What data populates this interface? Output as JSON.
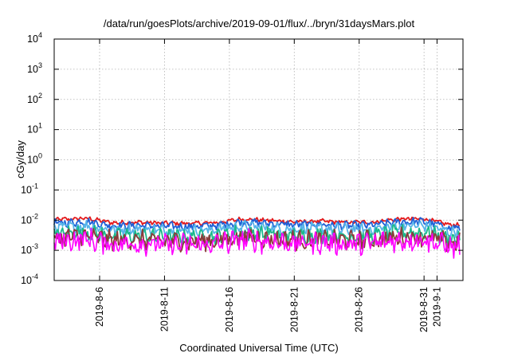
{
  "chart_data": {
    "type": "line",
    "title": "/data/run/goesPlots/archive/2019-09-01/flux/../bryn/31daysMars.plot",
    "xlabel": "Coordinated Universal Time (UTC)",
    "ylabel": "cGy/day",
    "yscale": "log",
    "ylim": [
      0.0001,
      10000
    ],
    "y_ticks": [
      {
        "base": "10",
        "exp": "-4",
        "value": 0.0001
      },
      {
        "base": "10",
        "exp": "-3",
        "value": 0.001
      },
      {
        "base": "10",
        "exp": "-2",
        "value": 0.01
      },
      {
        "base": "10",
        "exp": "-1",
        "value": 0.1
      },
      {
        "base": "10",
        "exp": "0",
        "value": 1
      },
      {
        "base": "10",
        "exp": "1",
        "value": 10
      },
      {
        "base": "10",
        "exp": "2",
        "value": 100
      },
      {
        "base": "10",
        "exp": "3",
        "value": 1000
      },
      {
        "base": "10",
        "exp": "4",
        "value": 10000
      }
    ],
    "xlim": [
      "2019-08-02T12:00",
      "2019-09-03T00:00"
    ],
    "x_ticks": [
      "2019-8-6",
      "2019-8-11",
      "2019-8-16",
      "2019-8-21",
      "2019-8-26",
      "2019-8-31",
      "2019-9-1"
    ],
    "grid": true,
    "legend": "none",
    "x": [
      "2019-08-03",
      "2019-08-05",
      "2019-08-07",
      "2019-08-09",
      "2019-08-11",
      "2019-08-13",
      "2019-08-15",
      "2019-08-17",
      "2019-08-19",
      "2019-08-21",
      "2019-08-23",
      "2019-08-25",
      "2019-08-27",
      "2019-08-29",
      "2019-08-31",
      "2019-09-02"
    ],
    "series": [
      {
        "color": "#e41a1c",
        "values": [
          0.0105,
          0.0115,
          0.0082,
          0.0085,
          0.008,
          0.0078,
          0.0082,
          0.011,
          0.0098,
          0.0088,
          0.0092,
          0.0084,
          0.0086,
          0.0108,
          0.0112,
          0.007
        ]
      },
      {
        "color": "#1f5fd6",
        "values": [
          0.008,
          0.009,
          0.0065,
          0.0067,
          0.0063,
          0.0062,
          0.0066,
          0.0088,
          0.0078,
          0.007,
          0.0073,
          0.0066,
          0.0068,
          0.0086,
          0.009,
          0.0056
        ]
      },
      {
        "color": "#56b4e9",
        "values": [
          0.0058,
          0.0065,
          0.0048,
          0.005,
          0.0046,
          0.0045,
          0.0048,
          0.0064,
          0.0057,
          0.0051,
          0.0053,
          0.0048,
          0.005,
          0.0063,
          0.0066,
          0.0041
        ]
      },
      {
        "color": "#1bb98a",
        "values": [
          0.0036,
          0.004,
          0.0029,
          0.003,
          0.0028,
          0.0027,
          0.0029,
          0.0039,
          0.0035,
          0.0031,
          0.0032,
          0.0029,
          0.003,
          0.0038,
          0.004,
          0.0025
        ]
      },
      {
        "color": "#8b3a3a",
        "values": [
          0.0026,
          0.0029,
          0.0021,
          0.0022,
          0.002,
          0.002,
          0.0021,
          0.0028,
          0.0025,
          0.0022,
          0.0023,
          0.0021,
          0.0022,
          0.0027,
          0.0029,
          0.0018
        ]
      },
      {
        "color": "#ff00ff",
        "values": [
          0.002,
          0.0023,
          0.0016,
          0.0017,
          0.0015,
          0.0015,
          0.0016,
          0.0022,
          0.0019,
          0.0017,
          0.0018,
          0.0016,
          0.0017,
          0.0021,
          0.0023,
          0.0013
        ]
      }
    ]
  }
}
